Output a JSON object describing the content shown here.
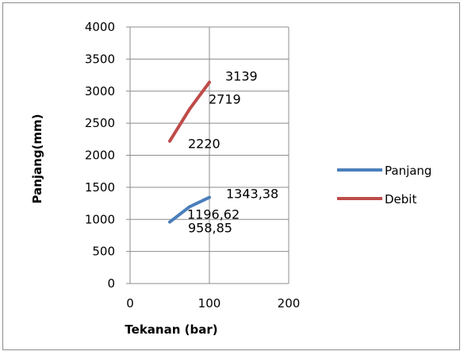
{
  "chart_data": {
    "type": "line",
    "title": "",
    "xlabel": "Tekanan (bar)",
    "ylabel": "Panjang(mm)",
    "xlim": [
      0,
      200
    ],
    "ylim": [
      0,
      4000
    ],
    "x_ticks": [
      "0",
      "100",
      "200"
    ],
    "y_ticks": [
      "0",
      "500",
      "1000",
      "1500",
      "2000",
      "2500",
      "3000",
      "3500",
      "4000"
    ],
    "grid": "major gridlines on both axes",
    "legend_position": "right",
    "series": [
      {
        "name": "Panjang",
        "color": "#4a7ebb",
        "x": [
          50,
          75,
          100
        ],
        "y": [
          958.85,
          1196.62,
          1343.38
        ],
        "labels": [
          "958,85",
          "1196,62",
          "1343,38"
        ]
      },
      {
        "name": "Debit",
        "color": "#be4b48",
        "x": [
          50,
          75,
          100
        ],
        "y": [
          2220,
          2719,
          3139
        ],
        "labels": [
          "2220",
          "2719",
          "3139"
        ]
      }
    ]
  }
}
